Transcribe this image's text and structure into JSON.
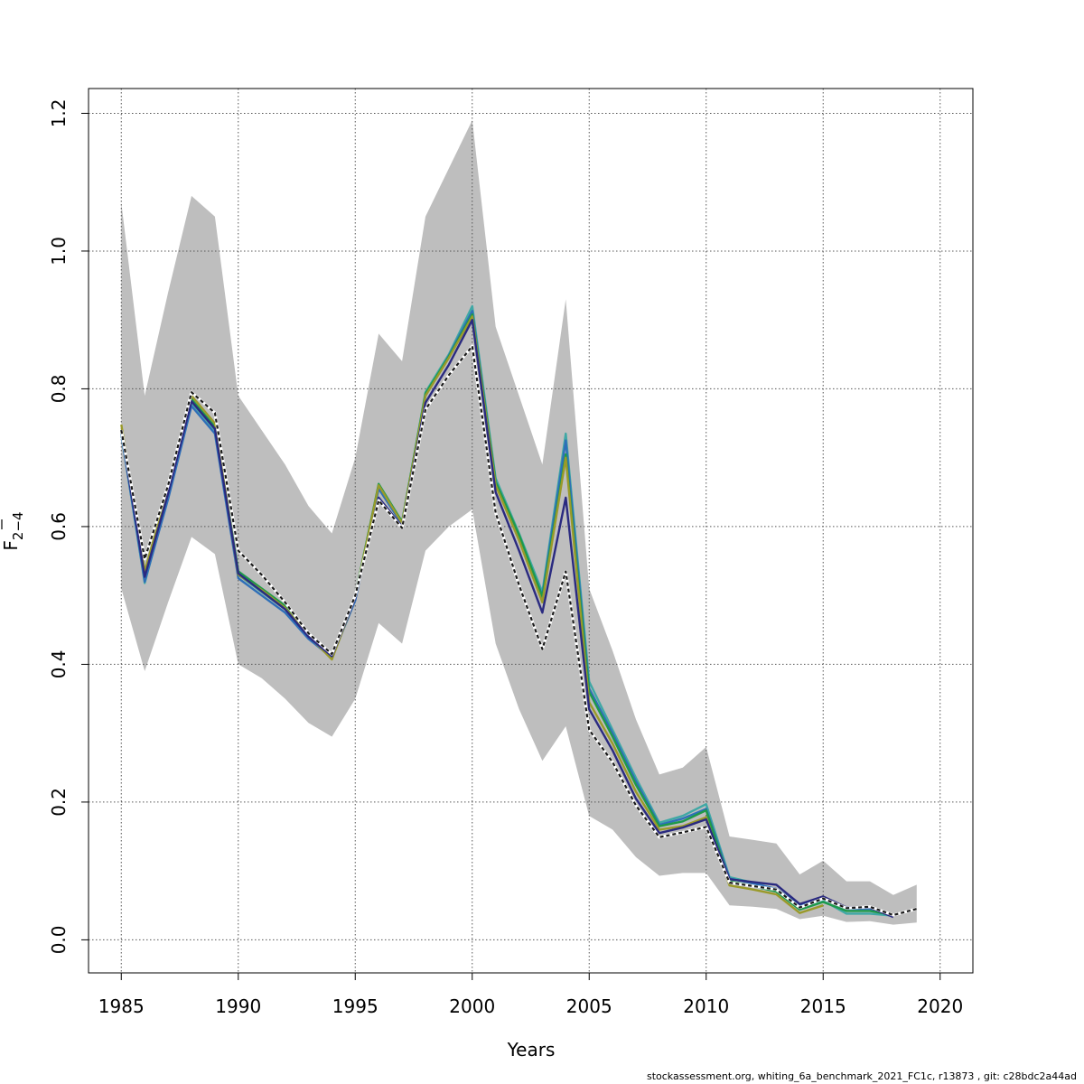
{
  "chart_data": {
    "type": "line",
    "xlabel": "Years",
    "ylabel": {
      "main": "F",
      "sub": "2−4"
    },
    "xlim": [
      1983.6,
      2021.4
    ],
    "ylim": [
      -0.048,
      1.236
    ],
    "x_ticks": [
      1985,
      1990,
      1995,
      2000,
      2005,
      2010,
      2015,
      2020
    ],
    "y_ticks": [
      0.0,
      0.2,
      0.4,
      0.6,
      0.8,
      1.0,
      1.2
    ],
    "grid": true,
    "band": {
      "x": [
        1985,
        1986,
        1987,
        1988,
        1989,
        1990,
        1991,
        1992,
        1993,
        1994,
        1995,
        1996,
        1997,
        1998,
        1999,
        2000,
        2001,
        2002,
        2003,
        2004,
        2005,
        2006,
        2007,
        2008,
        2009,
        2010,
        2011,
        2012,
        2013,
        2014,
        2015,
        2016,
        2017,
        2018,
        2019
      ],
      "upper": [
        1.07,
        0.79,
        0.94,
        1.08,
        1.05,
        0.79,
        0.74,
        0.69,
        0.63,
        0.59,
        0.7,
        0.88,
        0.84,
        1.05,
        1.12,
        1.19,
        0.89,
        0.79,
        0.69,
        0.93,
        0.51,
        0.42,
        0.32,
        0.24,
        0.25,
        0.28,
        0.15,
        0.145,
        0.14,
        0.095,
        0.115,
        0.085,
        0.085,
        0.065,
        0.08
      ],
      "lower": [
        0.51,
        0.39,
        0.49,
        0.585,
        0.56,
        0.4,
        0.38,
        0.35,
        0.315,
        0.295,
        0.35,
        0.46,
        0.43,
        0.565,
        0.6,
        0.625,
        0.43,
        0.335,
        0.26,
        0.31,
        0.18,
        0.16,
        0.12,
        0.093,
        0.097,
        0.097,
        0.05,
        0.048,
        0.045,
        0.03,
        0.035,
        0.026,
        0.027,
        0.022,
        0.025
      ]
    },
    "series": [
      {
        "color": "#3FA8A5",
        "dashed": false,
        "x": [
          1985,
          1986,
          1987,
          1988,
          1989,
          1990,
          1991,
          1992,
          1993,
          1994,
          1995,
          1996,
          1997,
          1998,
          1999,
          2000,
          2001,
          2002,
          2003,
          2004,
          2005,
          2006,
          2007,
          2008,
          2009,
          2010,
          2011,
          2012,
          2013,
          2014,
          2015,
          2016,
          2017,
          2018
        ],
        "values": [
          0.735,
          0.518,
          0.645,
          0.78,
          0.74,
          0.53,
          0.505,
          0.48,
          0.44,
          0.41,
          0.495,
          0.66,
          0.605,
          0.795,
          0.85,
          0.92,
          0.67,
          0.59,
          0.505,
          0.735,
          0.375,
          0.305,
          0.235,
          0.17,
          0.18,
          0.197,
          0.091,
          0.083,
          0.073,
          0.048,
          0.057,
          0.038,
          0.038,
          0.035
        ]
      },
      {
        "color": "#2E6FB8",
        "dashed": false,
        "x": [
          1985,
          1986,
          1987,
          1988,
          1989,
          1990,
          1991,
          1992,
          1993,
          1994,
          1995,
          1996,
          1997,
          1998,
          1999,
          2000,
          2001,
          2002,
          2003,
          2004,
          2005,
          2006,
          2007,
          2008,
          2009,
          2010,
          2011,
          2012,
          2013,
          2014,
          2015,
          2016,
          2017,
          2018
        ],
        "values": [
          0.735,
          0.52,
          0.64,
          0.775,
          0.735,
          0.525,
          0.5,
          0.475,
          0.437,
          0.41,
          0.493,
          0.655,
          0.603,
          0.79,
          0.848,
          0.913,
          0.663,
          0.585,
          0.5,
          0.725,
          0.365,
          0.3,
          0.23,
          0.167,
          0.176,
          0.19,
          0.089,
          0.082,
          0.074,
          0.05,
          0.06,
          0.045,
          0.045,
          0.036
        ]
      },
      {
        "color": "#1E9A4A",
        "dashed": false,
        "x": [
          1985,
          1986,
          1987,
          1988,
          1989,
          1990,
          1991,
          1992,
          1993,
          1994,
          1995,
          1996,
          1997,
          1998,
          1999,
          2000,
          2001,
          2002,
          2003,
          2004,
          2005,
          2006,
          2007,
          2008,
          2009,
          2010,
          2011,
          2012,
          2013,
          2014,
          2015,
          2016,
          2017,
          2018
        ],
        "values": [
          0.74,
          0.53,
          0.65,
          0.785,
          0.745,
          0.535,
          0.51,
          0.485,
          0.445,
          0.413,
          0.5,
          0.662,
          0.607,
          0.793,
          0.847,
          0.908,
          0.665,
          0.588,
          0.498,
          0.705,
          0.36,
          0.295,
          0.225,
          0.165,
          0.172,
          0.188,
          0.085,
          0.078,
          0.07,
          0.044,
          0.055,
          0.042,
          0.042,
          0.036
        ]
      },
      {
        "color": "#9A9A2A",
        "dashed": false,
        "x": [
          1985,
          1986,
          1987,
          1988,
          1989,
          1990,
          1991,
          1992,
          1993,
          1994,
          1995,
          1996,
          1997,
          1998,
          1999,
          2000,
          2001,
          2002,
          2003,
          2004,
          2005,
          2006,
          2007,
          2008,
          2009,
          2010,
          2011,
          2012,
          2013,
          2014,
          2015
        ],
        "values": [
          0.748,
          0.535,
          0.655,
          0.79,
          0.75,
          0.53,
          0.508,
          0.482,
          0.442,
          0.407,
          0.498,
          0.66,
          0.605,
          0.79,
          0.845,
          0.905,
          0.66,
          0.58,
          0.49,
          0.7,
          0.345,
          0.285,
          0.215,
          0.16,
          0.165,
          0.178,
          0.079,
          0.073,
          0.066,
          0.039,
          0.05
        ]
      },
      {
        "color": "#2A2A80",
        "dashed": false,
        "x": [
          1985,
          1986,
          1987,
          1988,
          1989,
          1990,
          1991,
          1992,
          1993,
          1994,
          1995,
          1996,
          1997,
          1998,
          1999,
          2000,
          2001,
          2002,
          2003,
          2004,
          2005,
          2006,
          2007,
          2008,
          2009,
          2010,
          2011,
          2012,
          2013,
          2014,
          2015,
          2016,
          2017,
          2018
        ],
        "values": [
          0.74,
          0.527,
          0.648,
          0.782,
          0.742,
          0.532,
          0.506,
          0.48,
          0.44,
          0.412,
          0.497,
          0.642,
          0.6,
          0.78,
          0.835,
          0.9,
          0.65,
          0.565,
          0.475,
          0.642,
          0.335,
          0.275,
          0.205,
          0.155,
          0.163,
          0.175,
          0.088,
          0.084,
          0.08,
          0.052,
          0.063,
          0.047,
          0.047,
          0.033
        ]
      },
      {
        "color": "#1a1a1a",
        "dashed": true,
        "x": [
          1985,
          1986,
          1987,
          1988,
          1989,
          1990,
          1991,
          1992,
          1993,
          1994,
          1995,
          1996,
          1997,
          1998,
          1999,
          2000,
          2001,
          2002,
          2003,
          2004,
          2005,
          2006,
          2007,
          2008,
          2009,
          2010,
          2011,
          2012,
          2013,
          2014,
          2015,
          2016,
          2017,
          2018,
          2019
        ],
        "values": [
          0.74,
          0.553,
          0.66,
          0.795,
          0.765,
          0.565,
          0.53,
          0.49,
          0.445,
          0.415,
          0.5,
          0.638,
          0.598,
          0.77,
          0.82,
          0.862,
          0.62,
          0.515,
          0.422,
          0.535,
          0.305,
          0.258,
          0.195,
          0.149,
          0.156,
          0.164,
          0.083,
          0.078,
          0.073,
          0.047,
          0.06,
          0.046,
          0.048,
          0.036,
          0.045
        ]
      }
    ]
  },
  "footer": "stockassessment.org, whiting_6a_benchmark_2021_FC1c, r13873 , git: c28bdc2a44ad"
}
